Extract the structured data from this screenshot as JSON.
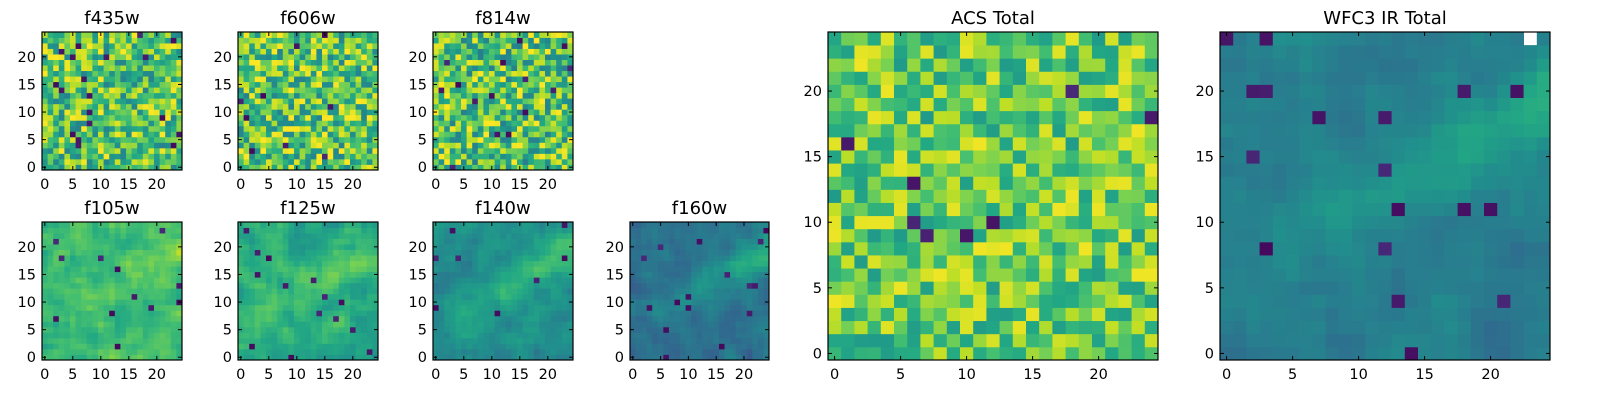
{
  "chart_data": [
    {
      "type": "heatmap",
      "title": "f435w",
      "grid_size": 25,
      "xlim": [
        -0.5,
        24.5
      ],
      "ylim": [
        -0.5,
        24.5
      ],
      "xticks": [
        0,
        5,
        10,
        15,
        20
      ],
      "yticks": [
        0,
        5,
        10,
        15,
        20
      ],
      "colormap": "viridis",
      "pattern": "noise",
      "seed": 11,
      "center": 0.72,
      "spread": 0.28
    },
    {
      "type": "heatmap",
      "title": "f606w",
      "grid_size": 25,
      "xlim": [
        -0.5,
        24.5
      ],
      "ylim": [
        -0.5,
        24.5
      ],
      "xticks": [
        0,
        5,
        10,
        15,
        20
      ],
      "yticks": [
        0,
        5,
        10,
        15,
        20
      ],
      "colormap": "viridis",
      "pattern": "noise",
      "seed": 23,
      "center": 0.74,
      "spread": 0.3
    },
    {
      "type": "heatmap",
      "title": "f814w",
      "grid_size": 25,
      "xlim": [
        -0.5,
        24.5
      ],
      "ylim": [
        -0.5,
        24.5
      ],
      "xticks": [
        0,
        5,
        10,
        15,
        20
      ],
      "yticks": [
        0,
        5,
        10,
        15,
        20
      ],
      "colormap": "viridis",
      "pattern": "noise",
      "seed": 37,
      "center": 0.72,
      "spread": 0.3
    },
    {
      "type": "heatmap",
      "title": "f105w",
      "grid_size": 25,
      "xlim": [
        -0.5,
        24.5
      ],
      "ylim": [
        -0.5,
        24.5
      ],
      "xticks": [
        0,
        5,
        10,
        15,
        20
      ],
      "yticks": [
        0,
        5,
        10,
        15,
        20
      ],
      "colormap": "viridis",
      "pattern": "smooth",
      "seed": 41,
      "center": 0.68,
      "spread": 0.22,
      "ridge": 0.1
    },
    {
      "type": "heatmap",
      "title": "f125w",
      "grid_size": 25,
      "xlim": [
        -0.5,
        24.5
      ],
      "ylim": [
        -0.5,
        24.5
      ],
      "xticks": [
        0,
        5,
        10,
        15,
        20
      ],
      "yticks": [
        0,
        5,
        10,
        15,
        20
      ],
      "colormap": "viridis",
      "pattern": "smooth",
      "seed": 53,
      "center": 0.62,
      "spread": 0.22,
      "ridge": 0.18
    },
    {
      "type": "heatmap",
      "title": "f140w",
      "grid_size": 25,
      "xlim": [
        -0.5,
        24.5
      ],
      "ylim": [
        -0.5,
        24.5
      ],
      "xticks": [
        0,
        5,
        10,
        15,
        20
      ],
      "yticks": [
        0,
        5,
        10,
        15,
        20
      ],
      "colormap": "viridis",
      "pattern": "smooth",
      "seed": 67,
      "center": 0.5,
      "spread": 0.18,
      "ridge": 0.35
    },
    {
      "type": "heatmap",
      "title": "f160w",
      "grid_size": 25,
      "xlim": [
        -0.5,
        24.5
      ],
      "ylim": [
        -0.5,
        24.5
      ],
      "xticks": [
        0,
        5,
        10,
        15,
        20
      ],
      "yticks": [
        0,
        5,
        10,
        15,
        20
      ],
      "colormap": "viridis",
      "pattern": "smooth",
      "seed": 79,
      "center": 0.38,
      "spread": 0.15,
      "ridge": 0.45
    },
    {
      "type": "heatmap",
      "title": "ACS Total",
      "grid_size": 25,
      "xlim": [
        -0.5,
        24.5
      ],
      "ylim": [
        -0.5,
        24.5
      ],
      "xticks": [
        0,
        5,
        10,
        15,
        20
      ],
      "yticks": [
        0,
        5,
        10,
        15,
        20
      ],
      "colormap": "viridis",
      "pattern": "noise",
      "seed": 97,
      "center": 0.76,
      "spread": 0.22
    },
    {
      "type": "heatmap",
      "title": "WFC3 IR Total",
      "grid_size": 25,
      "xlim": [
        -0.5,
        24.5
      ],
      "ylim": [
        -0.5,
        24.5
      ],
      "xticks": [
        0,
        5,
        10,
        15,
        20
      ],
      "yticks": [
        0,
        5,
        10,
        15,
        20
      ],
      "colormap": "viridis",
      "pattern": "smooth",
      "seed": 131,
      "center": 0.42,
      "spread": 0.12,
      "ridge": 0.45,
      "masked_cells": [
        [
          24,
          23
        ]
      ]
    }
  ]
}
